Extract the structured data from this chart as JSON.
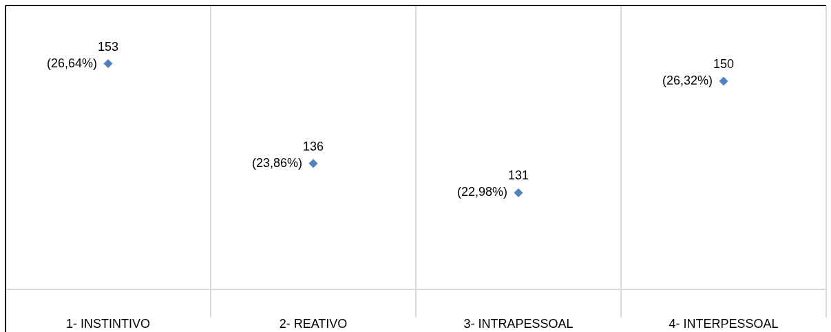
{
  "chart_data": {
    "type": "scatter",
    "categories": [
      "1- INSTINTIVO",
      "2- REATIVO",
      "3- INTRAPESSOAL",
      "4- INTERPESSOAL"
    ],
    "series": [
      {
        "color": "#4f81bd",
        "values": [
          153,
          136,
          131,
          150
        ]
      }
    ],
    "data_labels": true,
    "annotations": [
      {
        "text": "(26,64%)",
        "x": "1- INSTINTIVO",
        "y": 153
      },
      {
        "text": "(23,86%)",
        "x": "2- REATIVO",
        "y": 136
      },
      {
        "text": "(22,98%)",
        "x": "3- INTRAPESSOAL",
        "y": 131
      },
      {
        "text": "(26,32%)",
        "x": "4- INTERPESSOAL",
        "y": 150
      }
    ],
    "marker": "diamond",
    "grid": "x",
    "legend": false
  }
}
